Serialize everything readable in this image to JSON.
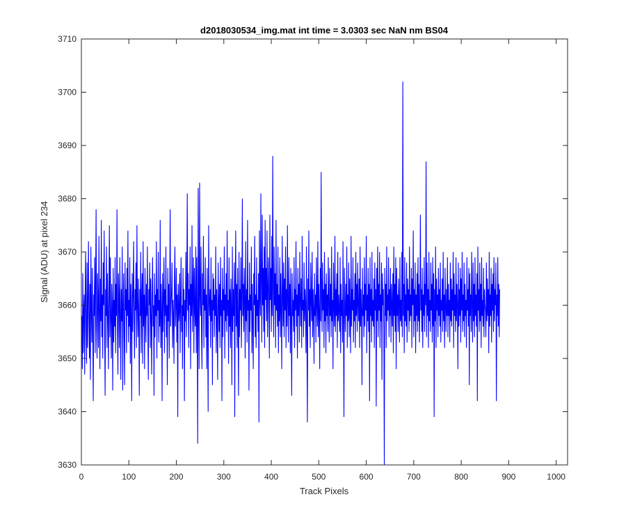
{
  "chart_data": {
    "type": "line",
    "title": "d2018030534_img.mat int time = 3.0303 sec  NaN nm BS04",
    "xlabel": "Track Pixels",
    "ylabel": "Signal (ADU) at pixel 234",
    "xlim": [
      0,
      1024
    ],
    "ylim": [
      3630,
      3710
    ],
    "xticks": [
      0,
      100,
      200,
      300,
      400,
      500,
      600,
      700,
      800,
      900,
      1000
    ],
    "yticks": [
      3630,
      3640,
      3650,
      3660,
      3670,
      3680,
      3690,
      3700,
      3710
    ],
    "grid": false,
    "series_color": "#0000ff",
    "axis_color": "#262626",
    "series": [
      {
        "x_start": 1,
        "x_step": 1,
        "values": [
          3658,
          3648,
          3666,
          3651,
          3659,
          3662,
          3647,
          3663,
          3670,
          3655,
          3649,
          3668,
          3652,
          3661,
          3672,
          3657,
          3650,
          3664,
          3646,
          3671,
          3660,
          3653,
          3667,
          3655,
          3642,
          3662,
          3658,
          3669,
          3651,
          3664,
          3678,
          3656,
          3650,
          3666,
          3661,
          3652,
          3673,
          3659,
          3648,
          3665,
          3657,
          3676,
          3654,
          3662,
          3650,
          3668,
          3660,
          3674,
          3655,
          3643,
          3663,
          3658,
          3671,
          3652,
          3666,
          3659,
          3648,
          3662,
          3675,
          3654,
          3669,
          3657,
          3650,
          3664,
          3660,
          3644,
          3667,
          3653,
          3661,
          3656,
          3669,
          3651,
          3664,
          3658,
          3678,
          3655,
          3647,
          3666,
          3662,
          3652,
          3669,
          3659,
          3646,
          3663,
          3657,
          3671,
          3644,
          3660,
          3666,
          3654,
          3645,
          3668,
          3659,
          3663,
          3651,
          3667,
          3658,
          3674,
          3653,
          3661,
          3656,
          3669,
          3649,
          3664,
          3658,
          3642,
          3666,
          3655,
          3662,
          3672,
          3657,
          3650,
          3663,
          3659,
          3668,
          3652,
          3675,
          3660,
          3654,
          3665,
          3657,
          3643,
          3663,
          3658,
          3670,
          3651,
          3661,
          3666,
          3649,
          3672,
          3656,
          3662,
          3648,
          3667,
          3659,
          3653,
          3664,
          3658,
          3671,
          3655,
          3646,
          3663,
          3660,
          3668,
          3652,
          3665,
          3658,
          3647,
          3662,
          3669,
          3656,
          3660,
          3643,
          3666,
          3654,
          3662,
          3658,
          3672,
          3650,
          3663,
          3659,
          3670,
          3653,
          3661,
          3656,
          3676,
          3652,
          3664,
          3659,
          3642,
          3666,
          3655,
          3662,
          3669,
          3651,
          3663,
          3658,
          3671,
          3654,
          3660,
          3645,
          3667,
          3657,
          3664,
          3650,
          3662,
          3678,
          3656,
          3660,
          3663,
          3668,
          3652,
          3661,
          3658,
          3649,
          3665,
          3671,
          3656,
          3660,
          3667,
          3653,
          3662,
          3639,
          3664,
          3657,
          3659,
          3666,
          3651,
          3662,
          3669,
          3655,
          3660,
          3648,
          3667,
          3658,
          3663,
          3642,
          3661,
          3657,
          3670,
          3654,
          3662,
          3681,
          3659,
          3666,
          3652,
          3663,
          3660,
          3671,
          3648,
          3664,
          3658,
          3675,
          3655,
          3662,
          3669,
          3651,
          3667,
          3659,
          3656,
          3671,
          3651,
          3669,
          3657,
          3634,
          3682,
          3660,
          3648,
          3683,
          3662,
          3658,
          3671,
          3655,
          3648,
          3666,
          3660,
          3673,
          3652,
          3663,
          3659,
          3669,
          3654,
          3662,
          3648,
          3667,
          3655,
          3640,
          3675,
          3661,
          3658,
          3663,
          3652,
          3669,
          3657,
          3661,
          3645,
          3666,
          3659,
          3665,
          3654,
          3662,
          3658,
          3671,
          3651,
          3663,
          3657,
          3646,
          3668,
          3661,
          3655,
          3664,
          3652,
          3669,
          3658,
          3661,
          3642,
          3667,
          3654,
          3663,
          3659,
          3671,
          3650,
          3662,
          3657,
          3666,
          3655,
          3674,
          3658,
          3661,
          3649,
          3669,
          3656,
          3663,
          3652,
          3665,
          3659,
          3645,
          3671,
          3655,
          3663,
          3658,
          3668,
          3639,
          3662,
          3674,
          3656,
          3664,
          3652,
          3667,
          3657,
          3643,
          3670,
          3654,
          3663,
          3659,
          3669,
          3652,
          3661,
          3680,
          3658,
          3664,
          3655,
          3667,
          3661,
          3650,
          3672,
          3657,
          3663,
          3653,
          3676,
          3659,
          3661,
          3644,
          3668,
          3655,
          3662,
          3659,
          3671,
          3651,
          3664,
          3657,
          3648,
          3666,
          3660,
          3673,
          3654,
          3662,
          3652,
          3669,
          3658,
          3661,
          3655,
          3666,
          3638,
          3674,
          3662,
          3658,
          3681,
          3665,
          3653,
          3677,
          3660,
          3667,
          3655,
          3671,
          3652,
          3676,
          3661,
          3667,
          3657,
          3674,
          3654,
          3663,
          3669,
          3659,
          3650,
          3677,
          3661,
          3667,
          3655,
          3673,
          3658,
          3688,
          3663,
          3654,
          3671,
          3660,
          3666,
          3652,
          3676,
          3659,
          3664,
          3656,
          3671,
          3651,
          3662,
          3657,
          3669,
          3654,
          3666,
          3659,
          3648,
          3673,
          3662,
          3656,
          3668,
          3654,
          3665,
          3659,
          3671,
          3652,
          3663,
          3656,
          3675,
          3660,
          3653,
          3669,
          3658,
          3664,
          3651,
          3667,
          3657,
          3643,
          3666,
          3658,
          3661,
          3655,
          3669,
          3652,
          3663,
          3659,
          3672,
          3656,
          3662,
          3650,
          3667,
          3658,
          3664,
          3653,
          3670,
          3661,
          3656,
          3665,
          3652,
          3673,
          3659,
          3661,
          3654,
          3668,
          3657,
          3663,
          3660,
          3651,
          3671,
          3655,
          3638,
          3665,
          3659,
          3674,
          3656,
          3663,
          3652,
          3668,
          3661,
          3657,
          3670,
          3654,
          3663,
          3659,
          3649,
          3666,
          3658,
          3662,
          3653,
          3669,
          3660,
          3656,
          3672,
          3654,
          3664,
          3659,
          3648,
          3667,
          3657,
          3685,
          3661,
          3655,
          3668,
          3659,
          3663,
          3652,
          3670,
          3657,
          3664,
          3651,
          3666,
          3658,
          3662,
          3655,
          3669,
          3660,
          3653,
          3667,
          3658,
          3664,
          3654,
          3671,
          3657,
          3661,
          3648,
          3668,
          3660,
          3656,
          3673,
          3655,
          3663,
          3658,
          3666,
          3652,
          3670,
          3657,
          3662,
          3659,
          3655,
          3669,
          3651,
          3664,
          3658,
          3661,
          3653,
          3672,
          3657,
          3639,
          3667,
          3660,
          3655,
          3664,
          3658,
          3671,
          3652,
          3662,
          3657,
          3668,
          3654,
          3665,
          3659,
          3651,
          3673,
          3656,
          3663,
          3659,
          3669,
          3653,
          3661,
          3657,
          3666,
          3652,
          3670,
          3658,
          3664,
          3655,
          3668,
          3660,
          3657,
          3665,
          3652,
          3671,
          3656,
          3663,
          3659,
          3645,
          3667,
          3658,
          3662,
          3654,
          3669,
          3656,
          3664,
          3659,
          3673,
          3651,
          3662,
          3657,
          3667,
          3655,
          3664,
          3642,
          3669,
          3658,
          3663,
          3653,
          3670,
          3657,
          3661,
          3656,
          3665,
          3652,
          3668,
          3659,
          3663,
          3641,
          3667,
          3657,
          3671,
          3654,
          3664,
          3659,
          3670,
          3652,
          3662,
          3657,
          3668,
          3646,
          3666,
          3660,
          3663,
          3655,
          3630,
          3667,
          3658,
          3664,
          3652,
          3671,
          3657,
          3662,
          3659,
          3669,
          3654,
          3663,
          3658,
          3667,
          3653,
          3664,
          3660,
          3656,
          3666,
          3651,
          3671,
          3658,
          3664,
          3655,
          3669,
          3648,
          3667,
          3658,
          3662,
          3655,
          3665,
          3660,
          3653,
          3669,
          3657,
          3661,
          3656,
          3670,
          3654,
          3702,
          3658,
          3664,
          3651,
          3669,
          3657,
          3662,
          3656,
          3668,
          3653,
          3665,
          3659,
          3663,
          3655,
          3671,
          3657,
          3662,
          3658,
          3667,
          3652,
          3665,
          3660,
          3674,
          3654,
          3663,
          3657,
          3668,
          3651,
          3662,
          3658,
          3666,
          3655,
          3669,
          3657,
          3664,
          3653,
          3661,
          3677,
          3659,
          3663,
          3655,
          3667,
          3652,
          3662,
          3658,
          3669,
          3655,
          3664,
          3660,
          3687,
          3654,
          3668,
          3658,
          3663,
          3652,
          3670,
          3657,
          3661,
          3655,
          3668,
          3659,
          3664,
          3653,
          3669,
          3656,
          3666,
          3639,
          3663,
          3657,
          3671,
          3652,
          3665,
          3659,
          3662,
          3654,
          3667,
          3658,
          3663,
          3656,
          3668,
          3653,
          3661,
          3659,
          3665,
          3655,
          3670,
          3657,
          3662,
          3652,
          3667,
          3660,
          3655,
          3663,
          3658,
          3669,
          3654,
          3664,
          3658,
          3661,
          3653,
          3668,
          3657,
          3665,
          3656,
          3663,
          3659,
          3670,
          3652,
          3666,
          3658,
          3662,
          3655,
          3669,
          3657,
          3664,
          3660,
          3648,
          3668,
          3656,
          3663,
          3658,
          3667,
          3653,
          3665,
          3659,
          3670,
          3655,
          3662,
          3657,
          3668,
          3654,
          3664,
          3658,
          3661,
          3652,
          3669,
          3659,
          3663,
          3656,
          3667,
          3645,
          3666,
          3658,
          3662,
          3655,
          3670,
          3660,
          3653,
          3668,
          3657,
          3664,
          3654,
          3669,
          3658,
          3662,
          3656,
          3666,
          3642,
          3671,
          3659,
          3663,
          3655,
          3668,
          3657,
          3664,
          3652,
          3669,
          3658,
          3661,
          3656,
          3667,
          3654,
          3663,
          3660,
          3659,
          3654,
          3668,
          3657,
          3665,
          3658,
          3663,
          3651,
          3670,
          3656,
          3662,
          3658,
          3667,
          3653,
          3664,
          3659,
          3666,
          3655,
          3669,
          3657,
          3663,
          3660,
          3668,
          3642,
          3662,
          3658,
          3669,
          3656,
          3664,
          3654,
          3663
        ]
      }
    ]
  }
}
